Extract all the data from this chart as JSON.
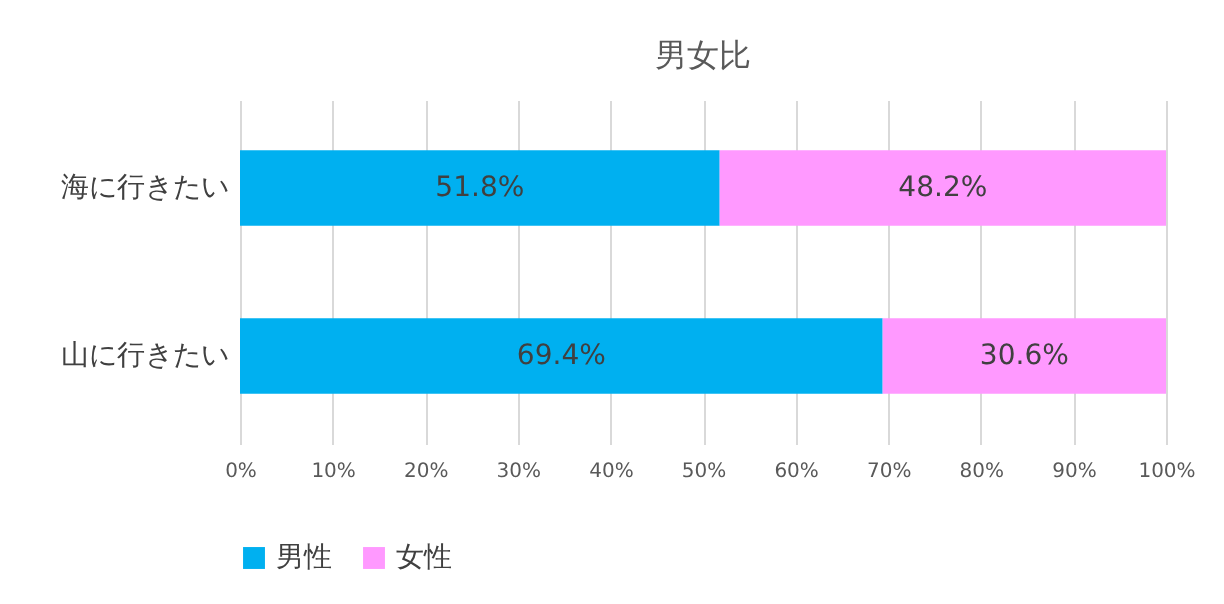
{
  "chart_data": {
    "type": "bar",
    "orientation": "horizontal",
    "stacked": true,
    "title": "男女比",
    "categories": [
      "海に行きたい",
      "山に行きたい"
    ],
    "series": [
      {
        "name": "男性",
        "color": "#00b0f0",
        "values": [
          51.8,
          69.4
        ],
        "value_labels": [
          "51.8%",
          "69.4%"
        ]
      },
      {
        "name": "女性",
        "color": "#ff99ff",
        "values": [
          48.2,
          30.6
        ],
        "value_labels": [
          "48.2%",
          "30.6%"
        ]
      }
    ],
    "xlim": [
      0,
      100
    ],
    "xticks": [
      {
        "value": 0,
        "label": "0%"
      },
      {
        "value": 10,
        "label": "10%"
      },
      {
        "value": 20,
        "label": "20%"
      },
      {
        "value": 30,
        "label": "30%"
      },
      {
        "value": 40,
        "label": "40%"
      },
      {
        "value": 50,
        "label": "50%"
      },
      {
        "value": 60,
        "label": "60%"
      },
      {
        "value": 70,
        "label": "70%"
      },
      {
        "value": 80,
        "label": "80%"
      },
      {
        "value": 90,
        "label": "90%"
      },
      {
        "value": 100,
        "label": "100%"
      }
    ],
    "grid": "x",
    "legend": "bottom"
  }
}
